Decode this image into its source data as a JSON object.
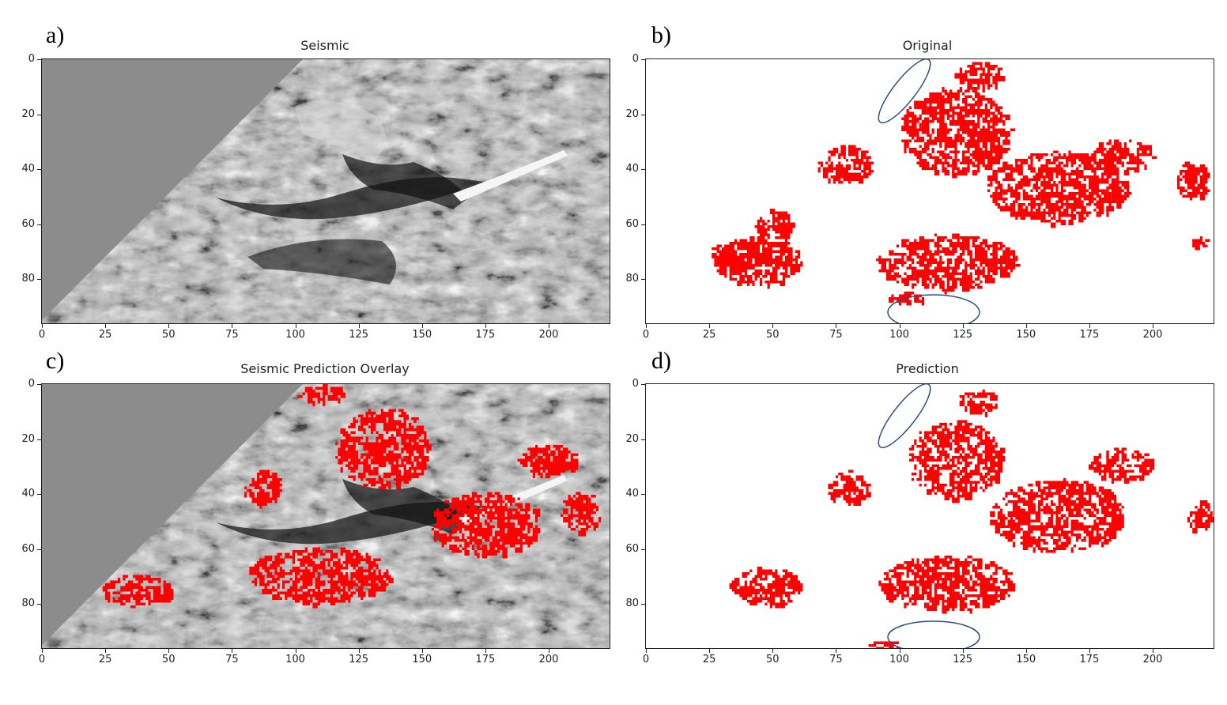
{
  "panels": [
    {
      "id": "a",
      "letter": "a)",
      "title": "Seismic",
      "type": "seismic"
    },
    {
      "id": "b",
      "letter": "b)",
      "title": "Original",
      "type": "mask"
    },
    {
      "id": "c",
      "letter": "c)",
      "title": "Seismic Prediction Overlay",
      "type": "overlay"
    },
    {
      "id": "d",
      "letter": "d)",
      "title": "Prediction",
      "type": "mask"
    }
  ],
  "axes": {
    "x_ticks": [
      "0",
      "25",
      "50",
      "75",
      "100",
      "125",
      "150",
      "175",
      "200"
    ],
    "y_ticks": [
      "0",
      "20",
      "40",
      "60",
      "80"
    ],
    "x_range": [
      0,
      224
    ],
    "y_range": [
      0,
      96
    ]
  },
  "colors": {
    "mask": "#ff0000",
    "seismic_gray": "#8c8c8c",
    "annotation_ellipse": "#2f4f8a"
  }
}
